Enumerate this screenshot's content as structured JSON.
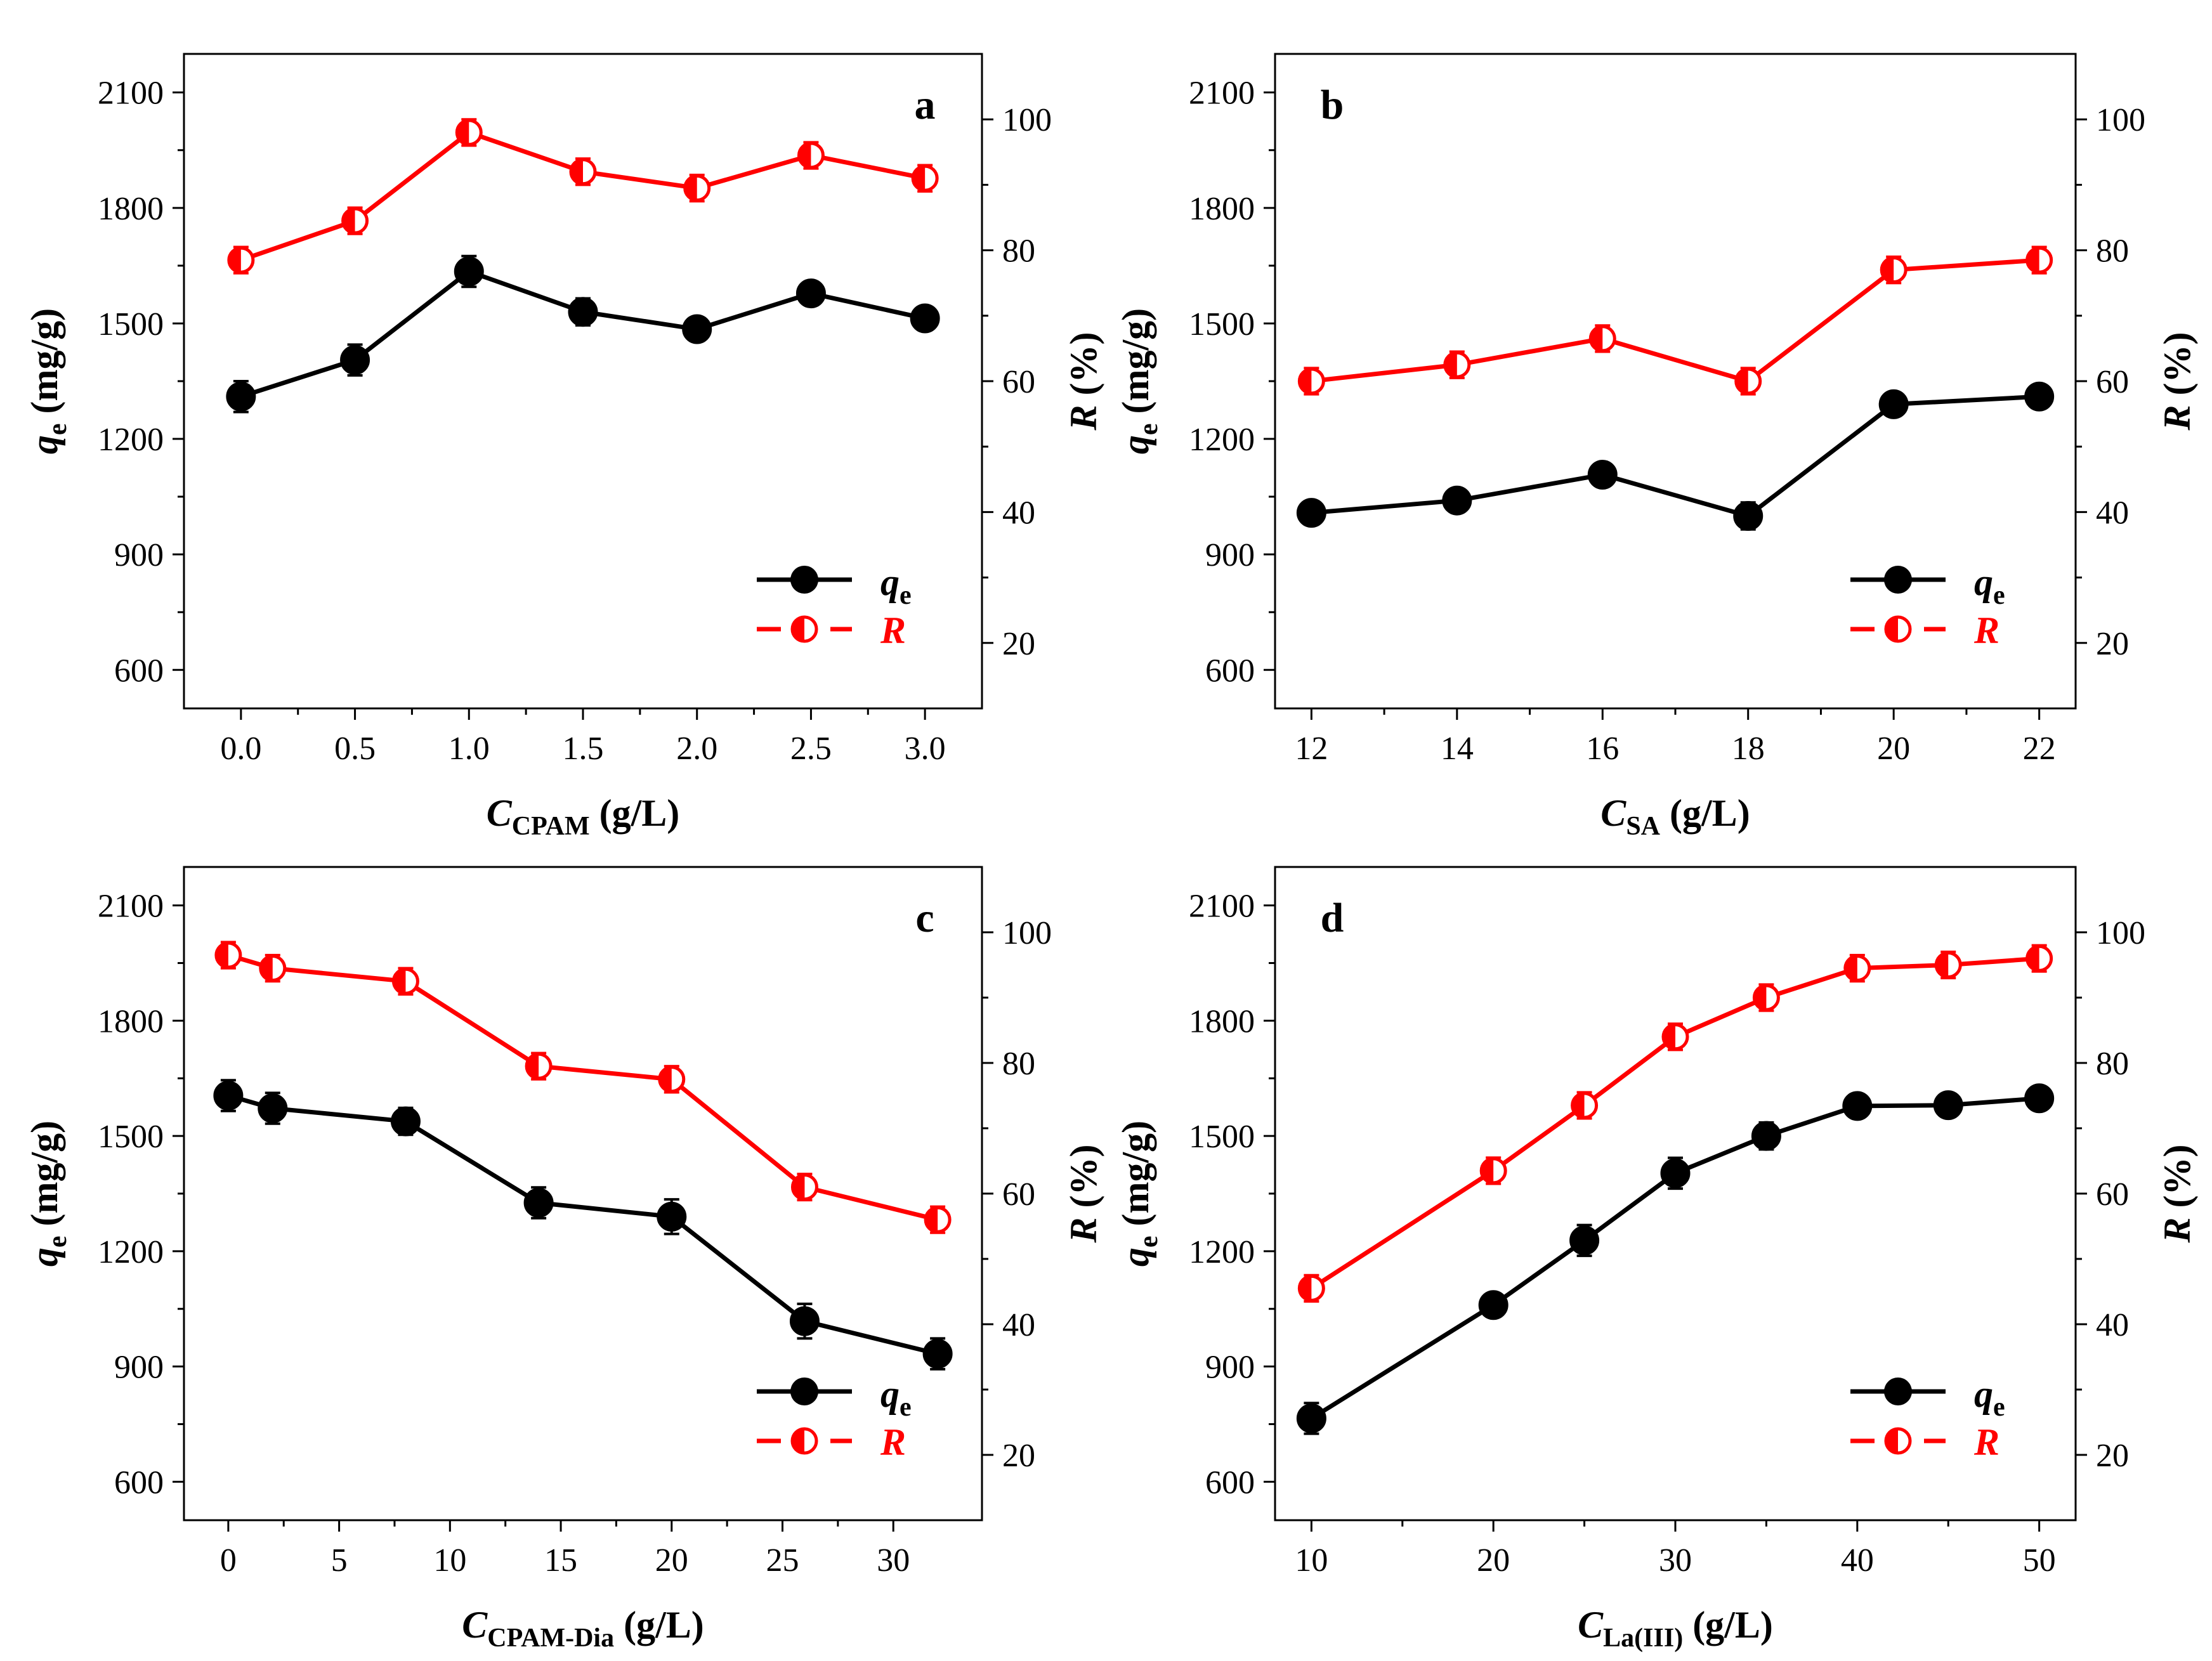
{
  "colors": {
    "qe": "#000000",
    "R": "#ff0000",
    "axis": "#000000",
    "background": "#ffffff"
  },
  "legend": {
    "qe_main": "q",
    "qe_sub": "e",
    "R": "R",
    "position": "bottom-right"
  },
  "left_axis_label": {
    "main": "q",
    "sub": "e",
    "unit": " (mg/g)"
  },
  "right_axis_label": {
    "main": "R",
    "unit": " (%)"
  },
  "chart_data": [
    {
      "type": "line",
      "panel": "a",
      "xlabel": {
        "main": "C",
        "sub": "CPAM",
        "unit": " (g/L)"
      },
      "xlim": [
        -0.25,
        3.25
      ],
      "xticks": [
        0.0,
        0.5,
        1.0,
        1.5,
        2.0,
        2.5,
        3.0
      ],
      "xtick_labels": [
        "0.0",
        "0.5",
        "1.0",
        "1.5",
        "2.0",
        "2.5",
        "3.0"
      ],
      "x": [
        0.0,
        0.5,
        1.0,
        1.5,
        2.0,
        2.5,
        3.0
      ],
      "ylim_left": [
        500,
        2200
      ],
      "yticks_left": [
        600,
        900,
        1200,
        1500,
        1800,
        2100
      ],
      "ylim_right": [
        10,
        110
      ],
      "yticks_right": [
        20,
        40,
        60,
        80,
        100
      ],
      "series": [
        {
          "name": "qe",
          "axis": "left",
          "values": [
            1310,
            1405,
            1635,
            1530,
            1485,
            1578,
            1513
          ],
          "errors": [
            40,
            40,
            40,
            35,
            30,
            30,
            30
          ]
        },
        {
          "name": "R",
          "axis": "right",
          "values": [
            78.5,
            84.5,
            98.0,
            92.0,
            89.5,
            94.5,
            91.0
          ],
          "errors": [
            2.0,
            2.0,
            2.0,
            2.0,
            2.0,
            2.0,
            2.0
          ]
        }
      ]
    },
    {
      "type": "line",
      "panel": "b",
      "xlabel": {
        "main": "C",
        "sub": "SA",
        "unit": " (g/L)"
      },
      "xlim": [
        11.5,
        22.5
      ],
      "xticks": [
        12,
        14,
        16,
        18,
        20,
        22
      ],
      "xtick_labels": [
        "12",
        "14",
        "16",
        "18",
        "20",
        "22"
      ],
      "x": [
        12,
        14,
        16,
        18,
        20,
        22
      ],
      "ylim_left": [
        500,
        2200
      ],
      "yticks_left": [
        600,
        900,
        1200,
        1500,
        1800,
        2100
      ],
      "ylim_right": [
        10,
        110
      ],
      "yticks_right": [
        20,
        40,
        60,
        80,
        100
      ],
      "series": [
        {
          "name": "qe",
          "axis": "left",
          "values": [
            1008,
            1040,
            1107,
            1000,
            1290,
            1310
          ],
          "errors": [
            30,
            30,
            25,
            35,
            30,
            30
          ]
        },
        {
          "name": "R",
          "axis": "right",
          "values": [
            60.0,
            62.5,
            66.5,
            60.0,
            77.0,
            78.5
          ],
          "errors": [
            2.0,
            2.0,
            2.0,
            2.0,
            2.0,
            2.0
          ]
        }
      ]
    },
    {
      "type": "line",
      "panel": "c",
      "xlabel": {
        "main": "C",
        "sub": "CPAM-Dia",
        "unit": " (g/L)"
      },
      "xlim": [
        -2,
        34
      ],
      "xticks": [
        0,
        5,
        10,
        15,
        20,
        25,
        30
      ],
      "xtick_labels": [
        "0",
        "5",
        "10",
        "15",
        "20",
        "25",
        "30"
      ],
      "x": [
        0,
        2,
        8,
        14,
        20,
        26,
        32
      ],
      "ylim_left": [
        500,
        2200
      ],
      "yticks_left": [
        600,
        900,
        1200,
        1500,
        1800,
        2100
      ],
      "ylim_right": [
        10,
        110
      ],
      "yticks_right": [
        20,
        40,
        60,
        80,
        100
      ],
      "series": [
        {
          "name": "qe",
          "axis": "left",
          "values": [
            1605,
            1572,
            1538,
            1326,
            1290,
            1018,
            933
          ],
          "errors": [
            40,
            40,
            35,
            40,
            45,
            45,
            40
          ]
        },
        {
          "name": "R",
          "axis": "right",
          "values": [
            96.5,
            94.5,
            92.5,
            79.5,
            77.5,
            61.0,
            56.0
          ],
          "errors": [
            2.0,
            2.0,
            2.0,
            2.0,
            2.0,
            2.0,
            2.0
          ]
        }
      ]
    },
    {
      "type": "line",
      "panel": "d",
      "xlabel": {
        "main": "C",
        "sub": "La(III)",
        "unit": " (g/L)"
      },
      "xlim": [
        8,
        52
      ],
      "xticks": [
        10,
        20,
        30,
        40,
        50
      ],
      "xtick_labels": [
        "10",
        "20",
        "30",
        "40",
        "50"
      ],
      "x": [
        10,
        20,
        25,
        30,
        35,
        40,
        45,
        50
      ],
      "ylim_left": [
        500,
        2200
      ],
      "yticks_left": [
        600,
        900,
        1200,
        1500,
        1800,
        2100
      ],
      "ylim_right": [
        10,
        110
      ],
      "yticks_right": [
        20,
        40,
        60,
        80,
        100
      ],
      "series": [
        {
          "name": "qe",
          "axis": "left",
          "values": [
            765,
            1060,
            1228,
            1403,
            1500,
            1578,
            1580,
            1598
          ],
          "errors": [
            40,
            30,
            40,
            40,
            35,
            30,
            30,
            30
          ]
        },
        {
          "name": "R",
          "axis": "right",
          "values": [
            45.5,
            63.5,
            73.5,
            84.0,
            90.0,
            94.5,
            95.0,
            96.0
          ],
          "errors": [
            2.0,
            2.0,
            2.0,
            2.0,
            2.0,
            2.0,
            2.0,
            2.0
          ]
        }
      ]
    }
  ]
}
